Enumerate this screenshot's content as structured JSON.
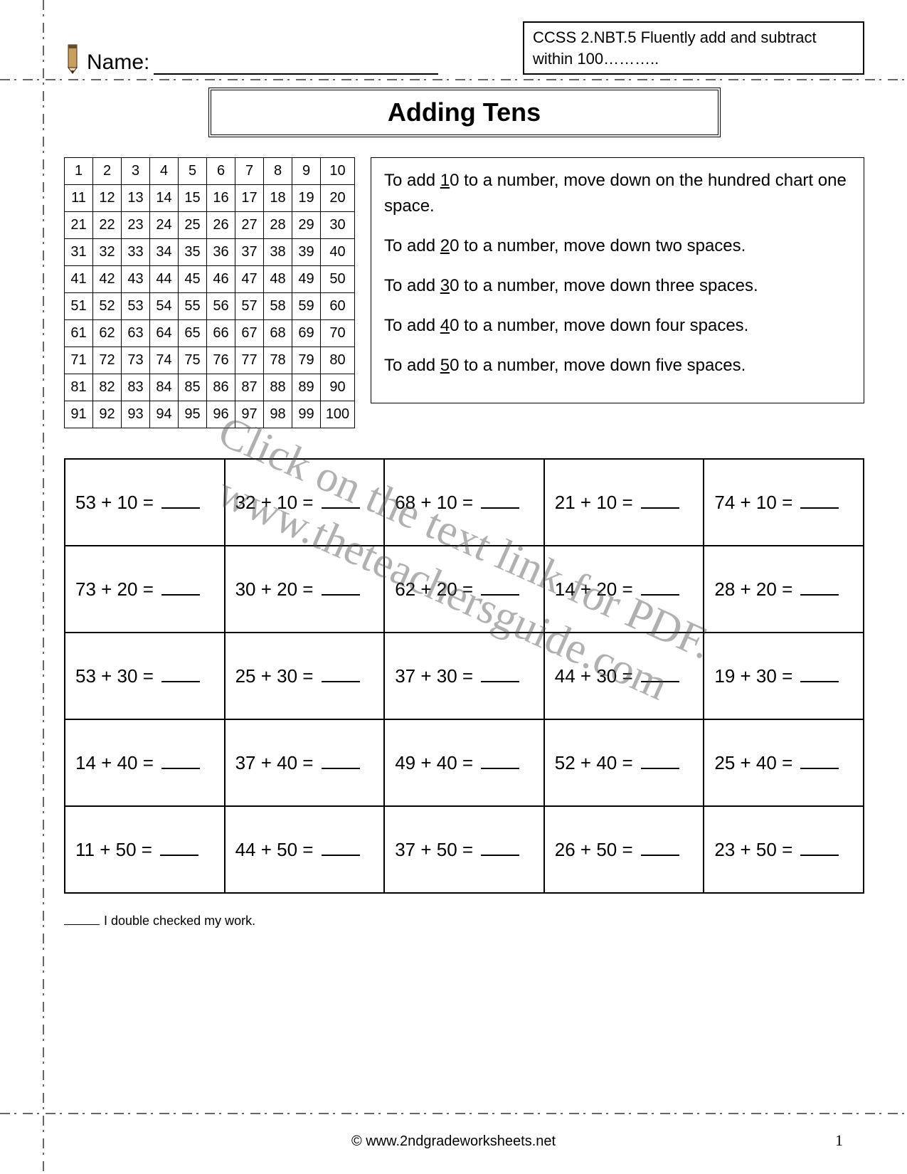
{
  "header": {
    "name_label": "Name:",
    "standard_text": "CCSS  2.NBT.5  Fluently add and subtract within 100………..",
    "title": "Adding Tens"
  },
  "hundred_chart": {
    "rows": [
      [
        "1",
        "2",
        "3",
        "4",
        "5",
        "6",
        "7",
        "8",
        "9",
        "10"
      ],
      [
        "11",
        "12",
        "13",
        "14",
        "15",
        "16",
        "17",
        "18",
        "19",
        "20"
      ],
      [
        "21",
        "22",
        "23",
        "24",
        "25",
        "26",
        "27",
        "28",
        "29",
        "30"
      ],
      [
        "31",
        "32",
        "33",
        "34",
        "35",
        "36",
        "37",
        "38",
        "39",
        "40"
      ],
      [
        "41",
        "42",
        "43",
        "44",
        "45",
        "46",
        "47",
        "48",
        "49",
        "50"
      ],
      [
        "51",
        "52",
        "53",
        "54",
        "55",
        "56",
        "57",
        "58",
        "59",
        "60"
      ],
      [
        "61",
        "62",
        "63",
        "64",
        "65",
        "66",
        "67",
        "68",
        "69",
        "70"
      ],
      [
        "71",
        "72",
        "73",
        "74",
        "75",
        "76",
        "77",
        "78",
        "79",
        "80"
      ],
      [
        "81",
        "82",
        "83",
        "84",
        "85",
        "86",
        "87",
        "88",
        "89",
        "90"
      ],
      [
        "91",
        "92",
        "93",
        "94",
        "95",
        "96",
        "97",
        "98",
        "99",
        "100"
      ]
    ]
  },
  "instructions": {
    "lines": [
      {
        "pre": " To add ",
        "u": "1",
        "post": "0 to a number, move down on the hundred chart one space."
      },
      {
        "pre": "To add ",
        "u": "2",
        "post": "0 to a number, move down two spaces."
      },
      {
        "pre": "To add ",
        "u": "3",
        "post": "0 to a number, move down three spaces."
      },
      {
        "pre": "To add ",
        "u": "4",
        "post": "0 to a number, move down four spaces."
      },
      {
        "pre": "To add ",
        "u": "5",
        "post": "0 to a number, move down five spaces."
      }
    ]
  },
  "problems": {
    "rows": [
      [
        "53 + 10 =",
        "32 + 10 =",
        "68 + 10 =",
        "21 + 10 =",
        "74 + 10 ="
      ],
      [
        "73 + 20 =",
        "30 + 20 =",
        "62 + 20 =",
        "14 + 20 =",
        "28 + 20 ="
      ],
      [
        "53 + 30 =",
        "25 + 30 =",
        "37 + 30 =",
        "44 + 30 =",
        "19 + 30 ="
      ],
      [
        "14 + 40 =",
        "37 + 40 =",
        "49 + 40 =",
        "52 + 40 =",
        "25 + 40 ="
      ],
      [
        "11 + 50 =",
        "44 + 50 =",
        "37 + 50 =",
        "26 + 50 =",
        "23 + 50 ="
      ]
    ]
  },
  "check_text": "I double checked my work.",
  "footer": {
    "copyright": "© www.2ndgradeworksheets.net",
    "page_number": "1"
  },
  "watermark": {
    "line1": "Click on the text link for PDF.",
    "line2": "www.theteachersguide.com"
  },
  "colors": {
    "text": "#000000",
    "border": "#000000",
    "cutline": "#666666",
    "watermark": "rgba(80,80,80,0.45)",
    "pencil_body": "#c9a05b",
    "pencil_tip": "#3a2a18"
  }
}
